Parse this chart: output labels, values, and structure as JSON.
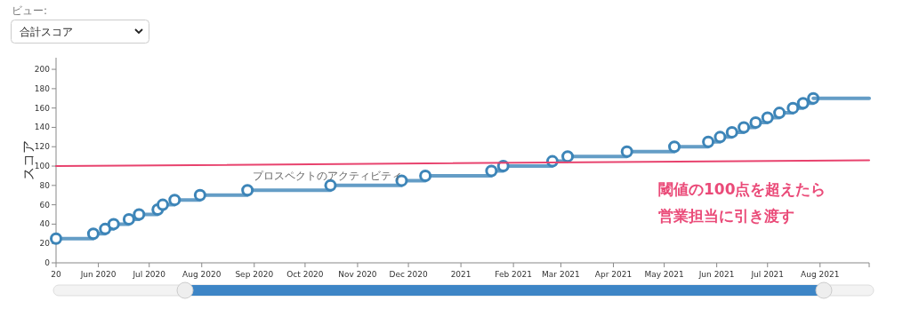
{
  "chart_data": {
    "type": "step",
    "ylabel": "スコア",
    "x": [
      "2020-05-07",
      "2020-05-29",
      "2020-06-05",
      "2020-06-10",
      "2020-06-19",
      "2020-06-25",
      "2020-07-06",
      "2020-07-09",
      "2020-07-16",
      "2020-07-31",
      "2020-08-28",
      "2020-10-16",
      "2020-11-27",
      "2020-12-11",
      "2021-01-19",
      "2021-01-26",
      "2021-02-24",
      "2021-03-05",
      "2021-04-09",
      "2021-05-07",
      "2021-05-27",
      "2021-06-03",
      "2021-06-10",
      "2021-06-17",
      "2021-06-24",
      "2021-07-01",
      "2021-07-08",
      "2021-07-16",
      "2021-07-22",
      "2021-07-28"
    ],
    "series": [
      {
        "name": "プロスペクトのアクティビティ",
        "color": "#3d85b8",
        "values": [
          25,
          30,
          35,
          40,
          45,
          50,
          55,
          60,
          65,
          70,
          75,
          80,
          85,
          90,
          95,
          100,
          105,
          110,
          115,
          120,
          125,
          130,
          135,
          140,
          145,
          150,
          155,
          160,
          165,
          170
        ]
      },
      {
        "type": "line",
        "marker": "none",
        "color": "#3d85b8",
        "x": [
          "2021-07-28",
          "2021-08-30"
        ],
        "values": [
          170,
          170
        ]
      },
      {
        "type": "line",
        "marker": "none",
        "color": "#e8436e",
        "x": [
          "2020-05-07",
          "2021-08-30"
        ],
        "values": [
          100,
          106
        ]
      }
    ],
    "xlim": [
      "2020-05-07",
      "2021-08-30"
    ],
    "xticks": [
      {
        "value": "2020-05-07",
        "label": "20"
      },
      {
        "value": "2020-06",
        "label": "Jun 2020"
      },
      {
        "value": "2020-07",
        "label": "Jul 2020"
      },
      {
        "value": "2020-08",
        "label": "Aug 2020"
      },
      {
        "value": "2020-09",
        "label": "Sep 2020"
      },
      {
        "value": "2020-10",
        "label": "Oct 2020"
      },
      {
        "value": "2020-11",
        "label": "Nov 2020"
      },
      {
        "value": "2020-12",
        "label": "Dec 2020"
      },
      {
        "value": "2021",
        "label": "2021"
      },
      {
        "value": "2021-02",
        "label": "Feb 2021"
      },
      {
        "value": "2021-03",
        "label": "Mar 2021"
      },
      {
        "value": "2021-04",
        "label": "Apr 2021"
      },
      {
        "value": "2021-05",
        "label": "May 2021"
      },
      {
        "value": "2021-06",
        "label": "Jun 2021"
      },
      {
        "value": "2021-07",
        "label": "Jul 2021"
      },
      {
        "value": "2021-08",
        "label": "Aug 2021"
      },
      {
        "value": "2021-08-30",
        "label": null
      }
    ],
    "ylim": [
      0,
      212
    ],
    "yticks": [
      0,
      20,
      40,
      60,
      80,
      100,
      120,
      140,
      160,
      180,
      200
    ],
    "grid": false,
    "marker": "circle",
    "line_style": "solid",
    "annotations": [
      "ビュー:",
      "合計スコア",
      "閾値の100点を超えたら",
      "営業担当に引き渡す"
    ]
  }
}
